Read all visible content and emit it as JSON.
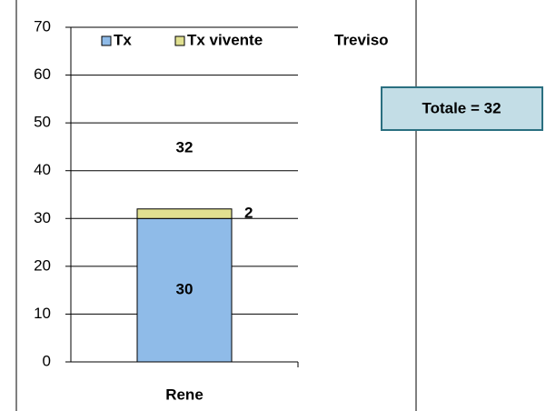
{
  "chart_data": {
    "type": "stacked_bar",
    "subtitle": "Treviso",
    "categories": [
      "Rene"
    ],
    "series": [
      {
        "name": "Tx",
        "color": "#8fbbe8",
        "values": [
          30
        ]
      },
      {
        "name": "Tx vivente",
        "color": "#e0e090",
        "values": [
          2
        ]
      }
    ],
    "totals": [
      32
    ],
    "annotation": "Totale = 32",
    "ylim": [
      0,
      70
    ],
    "yticks": [
      0,
      10,
      20,
      30,
      40,
      50,
      60,
      70
    ],
    "grid": true
  }
}
